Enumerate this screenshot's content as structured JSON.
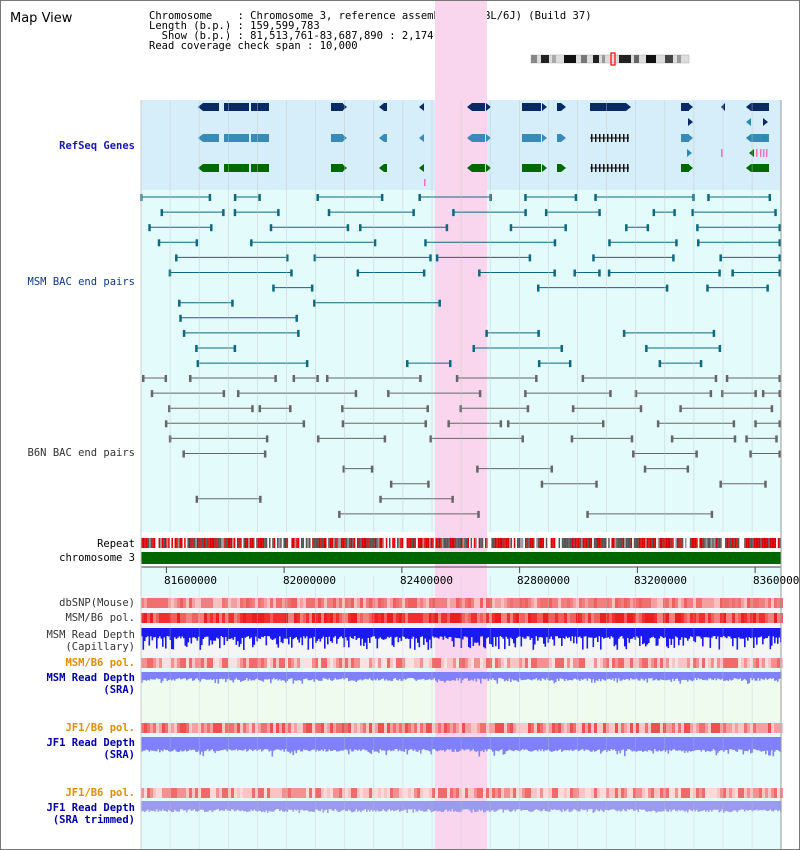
{
  "app_title": "Map View",
  "info": [
    {
      "key": "Chromosome   ",
      "value": "Chromosome 3, reference assembly (C57BL/6J) (Build 37)"
    },
    {
      "key": "Length (b.p.)",
      "value": "159,599,783"
    },
    {
      "key": "  Show (b.p.)",
      "value": "81,513,761-83,687,890 : 2,174,130 bp"
    },
    {
      "key": "Read coverage check span",
      "value": "10,000"
    }
  ],
  "tracks": {
    "refseq": "RefSeq Genes",
    "msm_bac": "MSM BAC end pairs",
    "b6n_bac": "B6N BAC end pairs",
    "repeat": "Repeat",
    "chromosome": "chromosome 3",
    "dbsnp": "dbSNP(Mouse)",
    "msm_pol": "MSM/B6 pol.",
    "msm_depth_cap": [
      "MSM Read Depth",
      "(Capillary)"
    ],
    "msm_pol2": "MSM/B6 pol.",
    "msm_depth_sra": [
      "MSM Read Depth",
      "(SRA)"
    ],
    "jf1_pol": "JF1/B6 pol.",
    "jf1_depth_sra": [
      "JF1 Read Depth",
      "(SRA)"
    ],
    "jf1_pol2": "JF1/B6 pol.",
    "jf1_depth_trim": [
      "JF1 Read Depth",
      "(SRA trimmed)"
    ]
  },
  "axis": {
    "view_start": 81513761,
    "view_end": 83687890,
    "ticks": [
      "81600000",
      "82000000",
      "82400000",
      "82800000",
      "83200000",
      "83600000"
    ]
  },
  "colors": {
    "refseq_bg": "#d6eef9",
    "track_bg": "#e3fbfb",
    "highlight": "#fad6ee",
    "gene_dark": "#0a2a66",
    "gene_light": "#3a8ab8",
    "gene_green": "#006a00",
    "bac_msm": "#0e6880",
    "bac_b6n": "#666666",
    "chromosome": "#006600",
    "depth_cap": "#1a1af0",
    "depth_sra": "#8080f8"
  }
}
